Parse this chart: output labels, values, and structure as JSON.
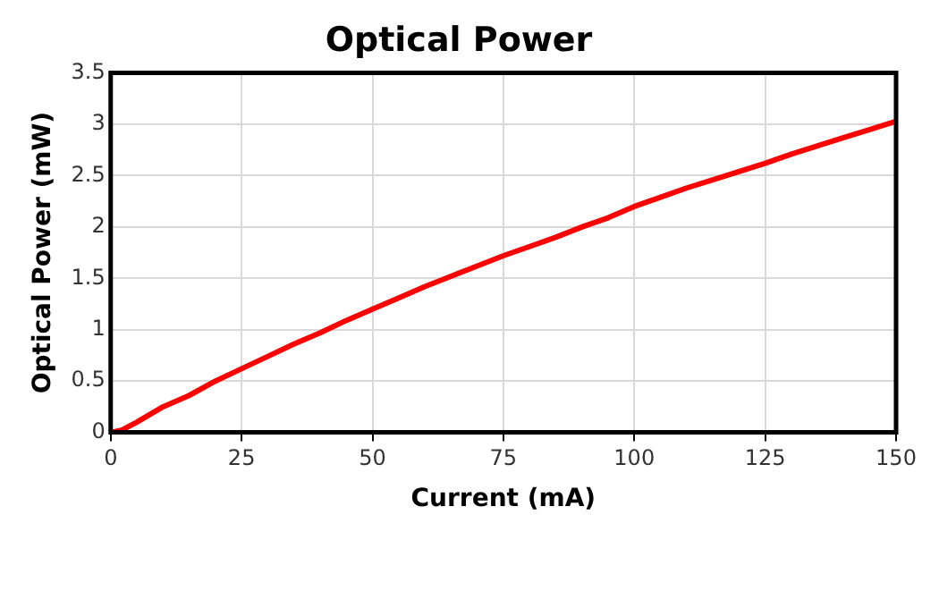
{
  "chart_data": {
    "type": "line",
    "title": "Optical Power",
    "xlabel": "Current (mA)",
    "ylabel": "Optical Power (mW)",
    "x": [
      0,
      2,
      5,
      10,
      15,
      20,
      25,
      30,
      35,
      40,
      45,
      50,
      55,
      60,
      65,
      70,
      75,
      80,
      85,
      90,
      95,
      100,
      105,
      110,
      115,
      120,
      125,
      130,
      135,
      140,
      145,
      150
    ],
    "series": [
      {
        "color": "#ff0000",
        "values": [
          0,
          0.02,
          0.1,
          0.25,
          0.36,
          0.5,
          0.62,
          0.74,
          0.86,
          0.97,
          1.09,
          1.2,
          1.31,
          1.42,
          1.52,
          1.62,
          1.72,
          1.81,
          1.9,
          2.0,
          2.09,
          2.2,
          2.29,
          2.38,
          2.46,
          2.54,
          2.62,
          2.71,
          2.79,
          2.87,
          2.95,
          3.03
        ]
      }
    ],
    "xlim": [
      0,
      150
    ],
    "xticks": [
      0,
      25,
      50,
      75,
      100,
      125,
      150
    ],
    "ylim": [
      0,
      3.5
    ],
    "yticks": [
      0,
      0.5,
      1,
      1.5,
      2,
      2.5,
      3,
      3.5
    ],
    "grid": true,
    "legend": false,
    "marker": "none",
    "line_style": "solid"
  }
}
